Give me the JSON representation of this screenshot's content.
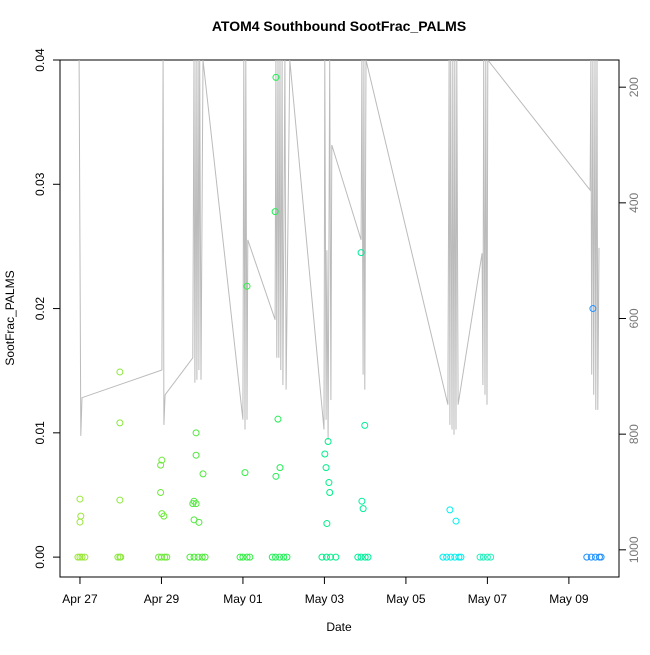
{
  "chart_data": {
    "type": "scatter",
    "title": "ATOM4 Southbound SootFrac_PALMS",
    "xlabel": "Date",
    "ylabel": "SootFrac_PALMS",
    "xlim": [
      -0.49,
      13.23
    ],
    "xticks": [
      {
        "value": 0,
        "label": "Apr 27"
      },
      {
        "value": 2,
        "label": "Apr 29"
      },
      {
        "value": 4,
        "label": "May 01"
      },
      {
        "value": 6,
        "label": "May 03"
      },
      {
        "value": 8,
        "label": "May 05"
      },
      {
        "value": 10,
        "label": "May 07"
      },
      {
        "value": 12,
        "label": "May 09"
      }
    ],
    "ylim": [
      -0.0016,
      0.04
    ],
    "yticks": [
      {
        "value": 0,
        "label": "0.00"
      },
      0.01,
      0.02,
      0.03,
      0.04
    ],
    "y2lim": [
      1047,
      153
    ],
    "y2ticks": [
      200,
      400,
      600,
      800,
      1000
    ],
    "points": {
      "x": [
        -0.05,
        0,
        0.05,
        0.12,
        0.93,
        0.98,
        1.0,
        1.93,
        2.0,
        2.08,
        2.13,
        2.7,
        2.8,
        2.9,
        3.0,
        3.07,
        3.93,
        4.0,
        4.1,
        4.17,
        4.72,
        4.8,
        4.9,
        5.0,
        5.08,
        5.94,
        6.05,
        6.15,
        6.28,
        6.82,
        6.9,
        7.0,
        7.07,
        8.91,
        9.0,
        9.1,
        9.2,
        9.3,
        9.35,
        9.82,
        9.9,
        10.0,
        10.08,
        12.44,
        12.55,
        12.65,
        12.75,
        12.79,
        0,
        0.02,
        0,
        0.98,
        0.98,
        0.98,
        2.01,
        1.98,
        1.98,
        2.01,
        2.06,
        2.85,
        2.85,
        3.02,
        2.8,
        2.85,
        2.77,
        2.8,
        2.92,
        4.1,
        4.05,
        4.81,
        4.79,
        4.86,
        4.91,
        4.81,
        6.09,
        6.01,
        6.04,
        6.11,
        6.13,
        6.06,
        6.9,
        6.99,
        6.92,
        6.95,
        9.08,
        9.23,
        12.59
      ],
      "values": [
        0,
        0,
        0,
        0,
        0,
        0,
        0,
        0,
        0,
        0,
        0,
        0,
        0,
        0,
        0,
        0,
        0,
        0,
        0,
        0,
        0,
        0,
        0,
        0,
        0,
        0,
        0,
        0,
        0,
        0,
        0,
        0,
        0,
        0,
        0,
        0,
        0,
        0,
        0,
        0,
        0,
        0,
        0,
        0,
        0,
        0,
        0,
        0,
        0.00467,
        0.0033,
        0.00282,
        0.0149,
        0.0108,
        0.00459,
        0.0078,
        0.0074,
        0.0052,
        0.0035,
        0.0033,
        0.01,
        0.0082,
        0.0067,
        0.0045,
        0.0043,
        0.0043,
        0.003,
        0.0028,
        0.0218,
        0.0068,
        0.0386,
        0.0278,
        0.0111,
        0.0072,
        0.0065,
        0.0093,
        0.0083,
        0.0072,
        0.006,
        0.0052,
        0.0027,
        0.0245,
        0.0106,
        0.0045,
        0.0039,
        0.0038,
        0.0029,
        0.02
      ],
      "colors": [
        "#9be63c",
        "#9be63c",
        "#9be63c",
        "#9be63c",
        "#8ae83a",
        "#8ae83a",
        "#8ae83a",
        "#6ee83a",
        "#6ee83a",
        "#6ee83a",
        "#6ee83a",
        "#4ee83a",
        "#4ee83a",
        "#4ee83a",
        "#4ee83a",
        "#4ee83a",
        "#33ee44",
        "#33ee44",
        "#33ee44",
        "#33ee44",
        "#22ee55",
        "#22ee55",
        "#22ee55",
        "#22ee55",
        "#22ee55",
        "#00ee88",
        "#00ee88",
        "#00ee88",
        "#00ee88",
        "#00ee99",
        "#00ee99",
        "#00ee99",
        "#00ee99",
        "#00eeee",
        "#00eeee",
        "#00eeee",
        "#00eeee",
        "#00eeee",
        "#00eeee",
        "#22eebb",
        "#22eebb",
        "#22eebb",
        "#22eebb",
        "#1e90ff",
        "#1e90ff",
        "#1e90ff",
        "#1e90ff",
        "#1e90ff",
        "#9be63c",
        "#9be63c",
        "#9be63c",
        "#8ae83a",
        "#8ae83a",
        "#8ae83a",
        "#6ee83a",
        "#6ee83a",
        "#6ee83a",
        "#6ee83a",
        "#6ee83a",
        "#4ee83a",
        "#4ee83a",
        "#4ee83a",
        "#4ee83a",
        "#4ee83a",
        "#4ee83a",
        "#4ee83a",
        "#4ee83a",
        "#33ee44",
        "#33ee44",
        "#22ee55",
        "#22ee55",
        "#22ee55",
        "#22ee55",
        "#22ee55",
        "#00ee88",
        "#00ee88",
        "#00ee88",
        "#00ee88",
        "#00ee88",
        "#00ee88",
        "#00ee99",
        "#00ee99",
        "#00ee99",
        "#00ee99",
        "#00eeee",
        "#00eeee",
        "#1e90ff"
      ]
    },
    "trace": {
      "axis": "y2",
      "color": "#bbbbbb",
      "x": [
        -0.02,
        0,
        0.02,
        0.05,
        2.01,
        2.04,
        2.06,
        2.09,
        2.77,
        2.8,
        2.82,
        2.85,
        2.87,
        2.9,
        2.92,
        2.94,
        2.97,
        3.02,
        4.0,
        4.02,
        4.05,
        4.07,
        4.1,
        4.12,
        4.79,
        4.81,
        4.83,
        4.86,
        4.88,
        4.91,
        4.93,
        4.96,
        4.98,
        5.03,
        5.06,
        5.15,
        5.99,
        6.01,
        6.04,
        6.06,
        6.09,
        6.13,
        6.16,
        6.18,
        6.9,
        6.92,
        6.95,
        6.97,
        6.99,
        7.02,
        9.03,
        9.06,
        9.08,
        9.1,
        9.13,
        9.15,
        9.18,
        9.2,
        9.23,
        9.25,
        9.28,
        9.87,
        9.89,
        9.91,
        9.94,
        9.96,
        9.99,
        10.01,
        12.52,
        12.54,
        12.56,
        12.59,
        12.61,
        12.64,
        12.66,
        12.69,
        12.71,
        12.74
      ],
      "values": [
        153,
        492,
        803,
        737,
        689,
        153,
        784,
        732,
        668,
        153,
        711,
        153,
        706,
        153,
        689,
        153,
        706,
        153,
        775,
        153,
        792,
        153,
        775,
        464,
        602,
        153,
        668,
        153,
        668,
        153,
        689,
        153,
        715,
        153,
        723,
        153,
        792,
        153,
        775,
        482,
        810,
        153,
        741,
        300,
        464,
        153,
        697,
        153,
        723,
        153,
        749,
        153,
        784,
        153,
        792,
        153,
        801,
        153,
        792,
        153,
        749,
        487,
        715,
        153,
        732,
        153,
        749,
        153,
        378,
        153,
        697,
        153,
        732,
        153,
        758,
        153,
        758,
        478
      ]
    }
  }
}
